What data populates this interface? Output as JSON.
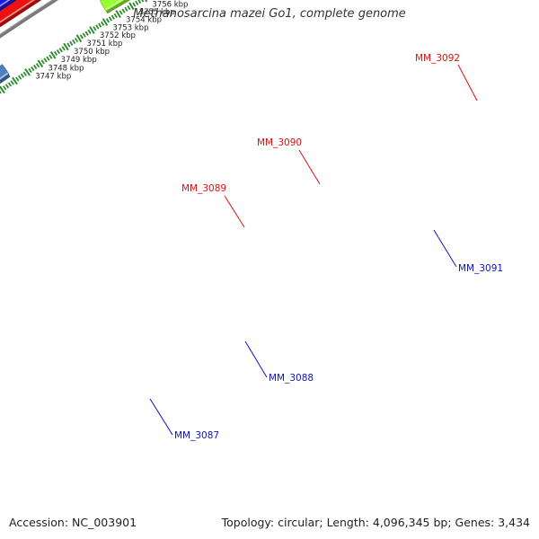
{
  "header": {
    "title": "Methanosarcina mazei Go1, complete genome"
  },
  "footer": {
    "accession": "Accession: NC_003901",
    "topology": "Topology: circular; Length: 4,096,345 bp; Genes: 3,434"
  },
  "colors": {
    "backbone": "#7a7a7a",
    "tick_dots": "#2e8b2e",
    "red": "#ee1111",
    "blue": "#1a1ae6",
    "cyan": "#1ee6e6",
    "orange": "#ff9900",
    "lime": "#99ff33",
    "gray": "#c8c8c8",
    "steel": "#4f7fbf",
    "label_forward": "#e01010",
    "label_reverse": "#1010cc"
  },
  "scale": {
    "tick_labels": [
      "3747 kbp",
      "3748 kbp",
      "3749 kbp",
      "3750 kbp",
      "3751 kbp",
      "3752 kbp",
      "3753 kbp",
      "3754 kbp",
      "3755 kbp",
      "3756 kbp"
    ]
  },
  "genes": {
    "forward": [
      {
        "id": "MM_3089",
        "label": "MM_3089",
        "color": "red"
      },
      {
        "id": "MM_3090",
        "label": "MM_3090",
        "color": "cyan"
      },
      {
        "id": "MM_3092",
        "label": "MM_3092",
        "color": "orange"
      }
    ],
    "reverse": [
      {
        "id": "MM_3087",
        "label": "MM_3087",
        "color": "lime"
      },
      {
        "id": "MM_3088",
        "label": "MM_3088",
        "color": "gray"
      },
      {
        "id": "MM_3091",
        "label": "MM_3091",
        "color": "blue"
      }
    ]
  }
}
